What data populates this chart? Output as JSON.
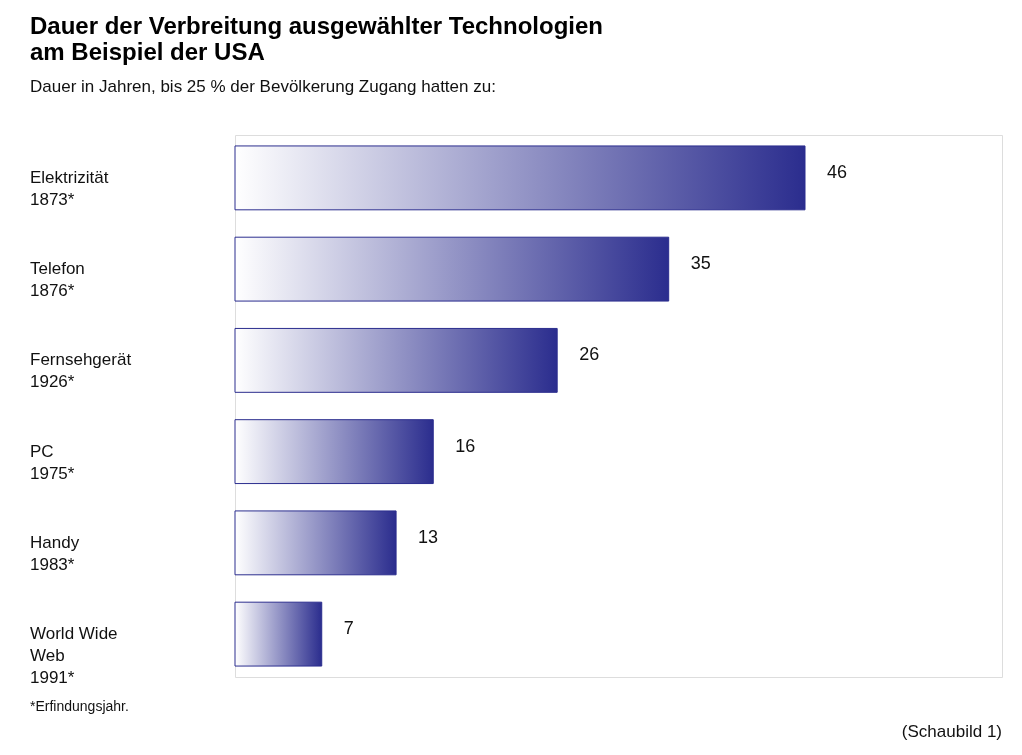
{
  "chart_data": {
    "type": "bar",
    "orientation": "horizontal",
    "title": "Dauer der Verbreitung ausgewählter Technologien\nam Beispiel der USA",
    "subtitle": "Dauer in Jahren, bis 25 % der Bevölkerung Zugang hatten zu:",
    "categories": [
      "Elektrizität\n1873*",
      "Telefon\n1876*",
      "Fernsehgerät\n1926*",
      "PC\n1975*",
      "Handy\n1983*",
      "World Wide\nWeb\n1991*"
    ],
    "values": [
      46,
      35,
      26,
      16,
      13,
      7
    ],
    "color": "#2b2d8e",
    "data_labels": true,
    "annotations": [
      "*Erfindungsjahr.",
      "(Schaubild 1)"
    ]
  }
}
